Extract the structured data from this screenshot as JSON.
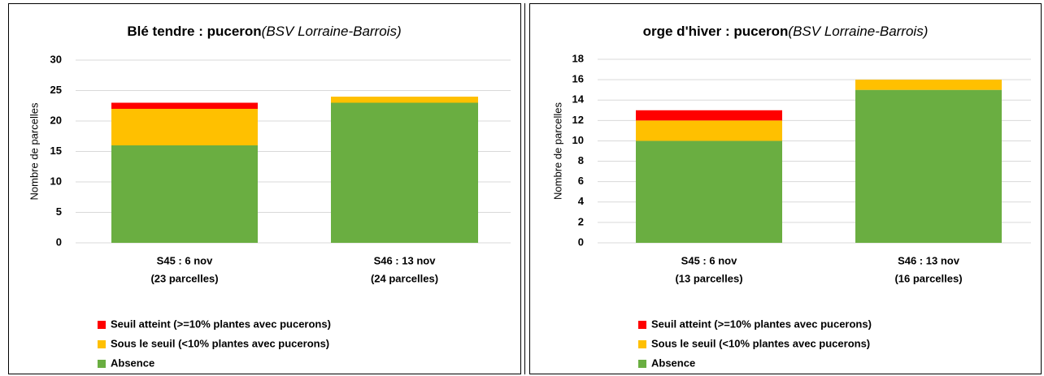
{
  "chart_data": [
    {
      "type": "bar",
      "stacked": true,
      "title": "Blé tendre : puceron",
      "subtitle": "(BSV Lorraine-Barrois)",
      "ylabel": "Nombre de parcelles",
      "categories": [
        [
          "S45 : 6 nov",
          "(23 parcelles)"
        ],
        [
          "S46 : 13 nov",
          "(24 parcelles)"
        ]
      ],
      "series": [
        {
          "name": "Absence",
          "color": "#6aae41",
          "values": [
            16,
            23
          ]
        },
        {
          "name": "Sous le seuil (<10% plantes avec pucerons)",
          "color": "#ffc000",
          "values": [
            6,
            1
          ]
        },
        {
          "name": "Seuil atteint  (>=10% plantes avec pucerons)",
          "color": "#ff0000",
          "values": [
            1,
            0
          ]
        }
      ],
      "ylim": [
        0,
        30
      ],
      "yticks": [
        0,
        5,
        10,
        15,
        20,
        25,
        30
      ],
      "grid": true,
      "legend": "bottom-left"
    },
    {
      "type": "bar",
      "stacked": true,
      "title": "orge d'hiver : puceron",
      "subtitle": "(BSV Lorraine-Barrois)",
      "ylabel": "Nombre de parcelles",
      "categories": [
        [
          "S45 : 6 nov",
          "(13 parcelles)"
        ],
        [
          "S46 : 13 nov",
          "(16 parcelles)"
        ]
      ],
      "series": [
        {
          "name": "Absence",
          "color": "#6aae41",
          "values": [
            10,
            15
          ]
        },
        {
          "name": "Sous le seuil (<10% plantes avec pucerons)",
          "color": "#ffc000",
          "values": [
            2,
            1
          ]
        },
        {
          "name": "Seuil atteint  (>=10% plantes avec pucerons)",
          "color": "#ff0000",
          "values": [
            1,
            0
          ]
        }
      ],
      "ylim": [
        0,
        18
      ],
      "yticks": [
        0,
        2,
        4,
        6,
        8,
        10,
        12,
        14,
        16,
        18
      ],
      "grid": true,
      "legend": "bottom-left"
    }
  ]
}
